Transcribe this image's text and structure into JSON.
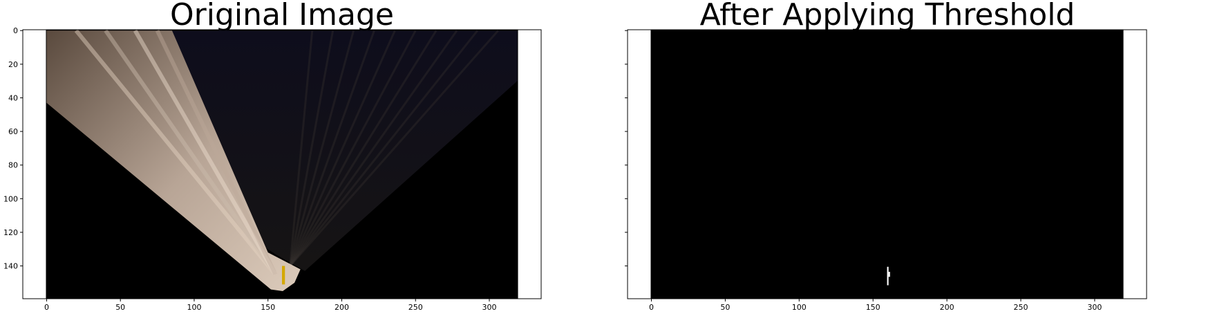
{
  "chart_data": [
    {
      "type": "image",
      "title": "Original Image",
      "xlim": [
        -0.5,
        319.5
      ],
      "ylim": [
        159.5,
        -0.5
      ],
      "x_ticks": [
        0,
        50,
        100,
        150,
        200,
        250,
        300
      ],
      "y_ticks": [
        0,
        20,
        40,
        60,
        80,
        100,
        120,
        140
      ],
      "y_tick_labels_visible": true,
      "image_content": "perspective-warped road view: light beige fan of road surface converging to bottom center, dark background, small yellow marking near x=160, y=140-150",
      "colors": {
        "background": "#000000",
        "road": "#c8b4a0",
        "marking": "#d4a800"
      }
    },
    {
      "type": "image",
      "title": "After Applying Threshold",
      "xlim": [
        -0.5,
        319.5
      ],
      "ylim": [
        159.5,
        -0.5
      ],
      "x_ticks": [
        0,
        50,
        100,
        150,
        200,
        250,
        300
      ],
      "y_ticks": [
        0,
        20,
        40,
        60,
        80,
        100,
        120,
        140
      ],
      "y_tick_labels_visible": false,
      "image_content": "binary threshold mask: all black except small white vertical mark at x=160, y=141-151",
      "colors": {
        "background": "#000000",
        "mask": "#ffffff"
      },
      "white_pixels": [
        {
          "x": 160,
          "y_start": 141,
          "y_end": 151
        },
        {
          "x": 161,
          "y_start": 144,
          "y_end": 146
        }
      ]
    }
  ]
}
